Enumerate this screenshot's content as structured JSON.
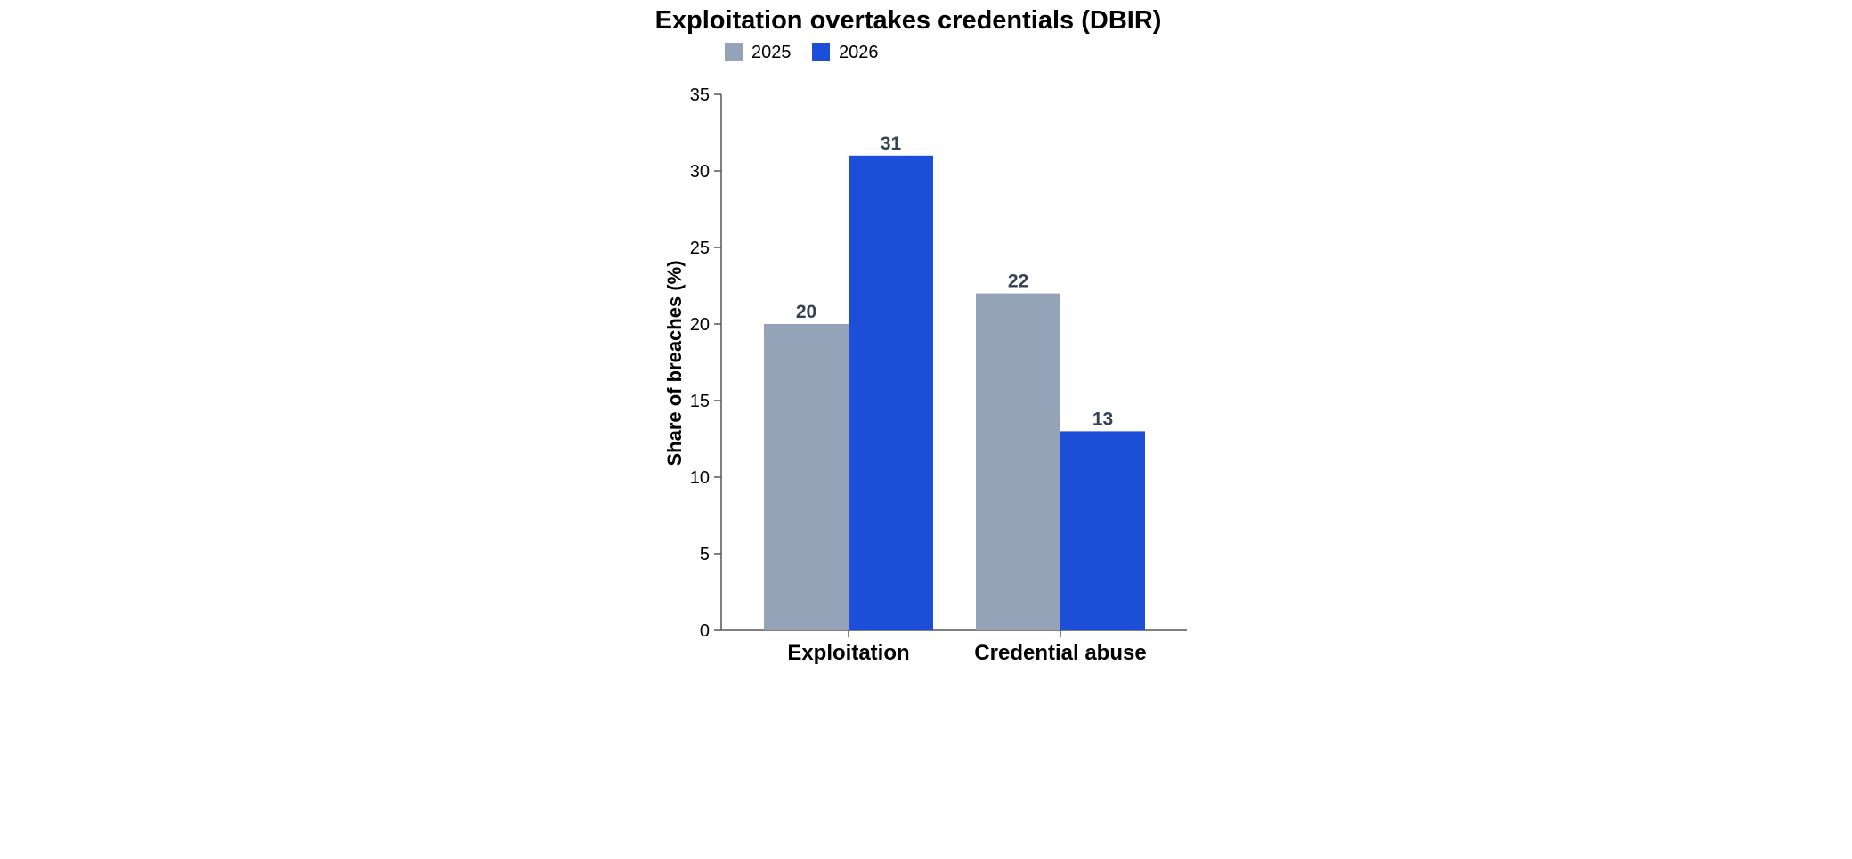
{
  "chart_data": {
    "type": "bar",
    "title": "Exploitation overtakes credentials (DBIR)",
    "xlabel": "",
    "ylabel": "Share of breaches (%)",
    "categories": [
      "Exploitation",
      "Credential abuse"
    ],
    "series": [
      {
        "name": "2025",
        "color": "#94a3b8",
        "values": [
          20,
          22
        ]
      },
      {
        "name": "2026",
        "color": "#1d4ed8",
        "values": [
          31,
          13
        ]
      }
    ],
    "ylim": [
      0,
      35
    ],
    "yticks": [
      0,
      5,
      10,
      15,
      20,
      25,
      30,
      35
    ],
    "grid": false,
    "legend": "top-left",
    "value_labels": true,
    "label_color": "#334155",
    "axis_color": "#555555"
  }
}
